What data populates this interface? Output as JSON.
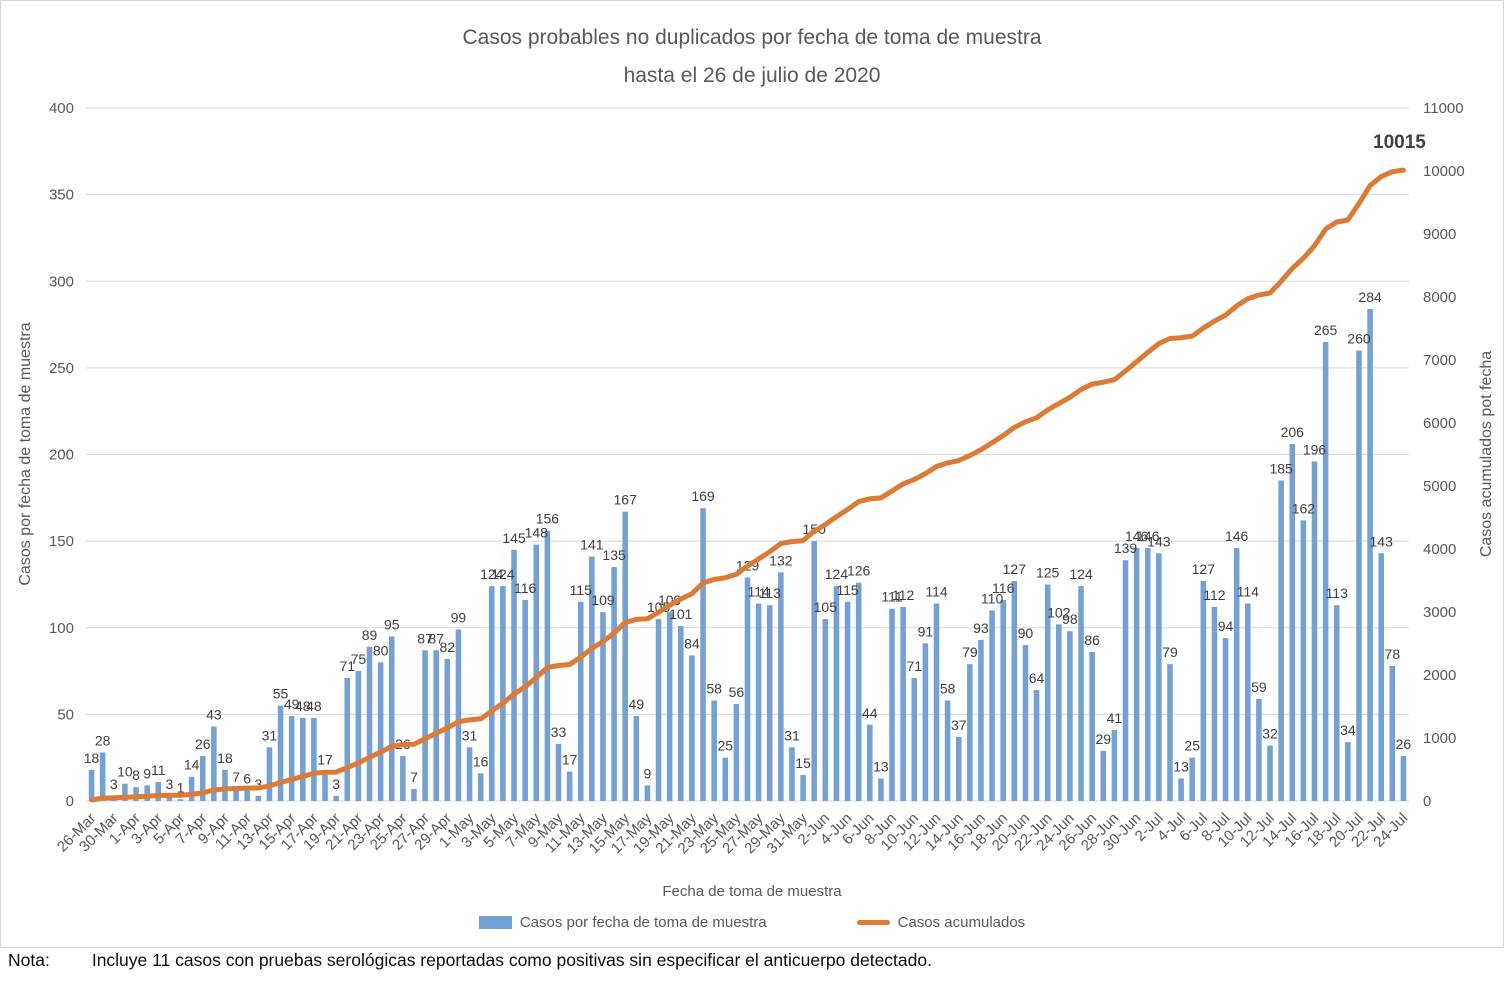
{
  "title": {
    "line1": "Casos probables no duplicados por fecha de toma de muestra",
    "line2": "hasta el  26 de julio de 2020"
  },
  "note": {
    "label": "Nota:",
    "text": "Incluye 11 casos con pruebas serológicas reportadas como positivas sin especificar el anticuerpo detectado."
  },
  "legend": [
    {
      "label": "Casos por fecha de toma de muestra"
    },
    {
      "label": "Casos acumulados"
    }
  ],
  "colors": {
    "bar": "#73A1D7",
    "line": "#DD7A33",
    "grid": "#D9D9D9",
    "axis_text": "#595959",
    "bar_label": "#404040"
  },
  "chart_data": {
    "type": "bar",
    "title": "Casos probables no duplicados por fecha de toma de muestra hasta el 26 de julio de 2020",
    "xlabel": "Fecha de toma de muestra",
    "left_axis": {
      "title": "Casos por fecha de toma de muestra",
      "min": 0,
      "max": 400,
      "step": 50,
      "ticks": [
        "0",
        "50",
        "100",
        "150",
        "200",
        "250",
        "300",
        "350",
        "400"
      ]
    },
    "right_axis": {
      "title": "Casos acumulados pot fecha",
      "min": 0,
      "max": 11000,
      "step": 1000,
      "ticks": [
        "0",
        "1000",
        "2000",
        "3000",
        "4000",
        "5000",
        "6000",
        "7000",
        "8000",
        "9000",
        "10000",
        "11000"
      ]
    },
    "grid": "horizontal",
    "legend_position": "bottom",
    "x_tick_every": 2,
    "x_tick_labels": [
      "26-Mar",
      "30-Mar",
      "1-Apr",
      "3-Apr",
      "5-Apr",
      "7-Apr",
      "9-Apr",
      "11-Apr",
      "13-Apr",
      "15-Apr",
      "17-Apr",
      "19-Apr",
      "21-Apr",
      "23-Apr",
      "25-Apr",
      "27-Apr",
      "29-Apr",
      "1-May",
      "3-May",
      "5-May",
      "7-May",
      "9-May",
      "11-May",
      "13-May",
      "15-May",
      "17-May",
      "19-May",
      "21-May",
      "23-May",
      "25-May",
      "27-May",
      "29-May",
      "31-May",
      "2-Jun",
      "4-Jun",
      "6-Jun",
      "8-Jun",
      "10-Jun",
      "12-Jun",
      "14-Jun",
      "16-Jun",
      "18-Jun",
      "20-Jun",
      "22-Jun",
      "24-Jun",
      "26-Jun",
      "28-Jun",
      "30-Jun",
      "2-Jul",
      "4-Jul",
      "6-Jul",
      "8-Jul",
      "10-Jul",
      "12-Jul",
      "14-Jul",
      "16-Jul",
      "18-Jul",
      "20-Jul",
      "22-Jul",
      "24-Jul"
    ],
    "series": [
      {
        "name": "Casos por fecha de toma de muestra",
        "type": "bar",
        "axis": "left",
        "color": "#73A1D7",
        "data_labels": true,
        "values": [
          18,
          28,
          3,
          10,
          8,
          9,
          11,
          3,
          1,
          14,
          26,
          43,
          18,
          7,
          6,
          3,
          31,
          55,
          49,
          48,
          48,
          17,
          3,
          71,
          75,
          89,
          80,
          95,
          26,
          7,
          87,
          87,
          82,
          99,
          31,
          16,
          124,
          124,
          145,
          116,
          148,
          156,
          33,
          17,
          115,
          141,
          109,
          135,
          167,
          49,
          9,
          105,
          109,
          101,
          84,
          169,
          58,
          25,
          56,
          129,
          114,
          113,
          132,
          31,
          15,
          150,
          105,
          124,
          115,
          126,
          44,
          13,
          111,
          112,
          71,
          91,
          114,
          58,
          37,
          79,
          93,
          110,
          116,
          127,
          90,
          64,
          125,
          102,
          98,
          124,
          86,
          29,
          41,
          139,
          146,
          146,
          143,
          79,
          13,
          25,
          127,
          112,
          94,
          146,
          114,
          59,
          32,
          185,
          206,
          162,
          196,
          265,
          113,
          34,
          260,
          284,
          143,
          78,
          26
        ]
      },
      {
        "name": "Casos acumulados",
        "type": "line",
        "axis": "right",
        "color": "#DD7A33",
        "values": [
          18,
          46,
          49,
          59,
          67,
          76,
          87,
          90,
          91,
          105,
          131,
          174,
          192,
          199,
          205,
          208,
          239,
          294,
          343,
          391,
          439,
          456,
          459,
          530,
          605,
          694,
          774,
          869,
          895,
          902,
          989,
          1076,
          1158,
          1257,
          1288,
          1304,
          1428,
          1552,
          1697,
          1813,
          1961,
          2117,
          2150,
          2167,
          2282,
          2423,
          2532,
          2667,
          2834,
          2883,
          2892,
          2997,
          3106,
          3207,
          3291,
          3460,
          3518,
          3543,
          3599,
          3728,
          3842,
          3955,
          4087,
          4118,
          4133,
          4283,
          4388,
          4512,
          4627,
          4753,
          4797,
          4810,
          4921,
          5033,
          5104,
          5195,
          5309,
          5367,
          5404,
          5483,
          5576,
          5686,
          5802,
          5929,
          6019,
          6083,
          6208,
          6310,
          6408,
          6532,
          6618,
          6647,
          6688,
          6827,
          6973,
          7119,
          7262,
          7341,
          7354,
          7379,
          7506,
          7618,
          7712,
          7858,
          7972,
          8031,
          8063,
          8248,
          8454,
          8616,
          8812,
          9077,
          9190,
          9224,
          9484,
          9768,
          9911,
          9989,
          10015
        ]
      }
    ],
    "annotation": {
      "text": "10015"
    }
  }
}
